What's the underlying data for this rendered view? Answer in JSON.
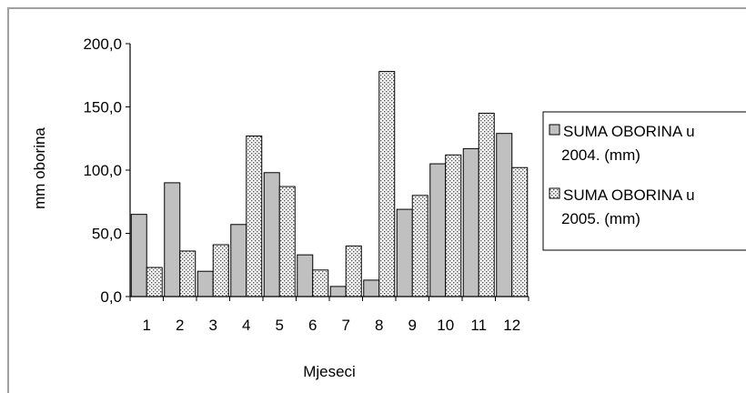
{
  "chart_data": {
    "type": "bar",
    "title": "",
    "xlabel": "Mjeseci",
    "ylabel": "mm oborina",
    "categories": [
      "1",
      "2",
      "3",
      "4",
      "5",
      "6",
      "7",
      "8",
      "9",
      "10",
      "11",
      "12"
    ],
    "ylim": [
      0,
      200
    ],
    "yticks": [
      "0,0",
      "50,0",
      "100,0",
      "150,0",
      "200,0"
    ],
    "ytick_values": [
      0,
      50,
      100,
      150,
      200
    ],
    "grid": false,
    "legend_position": "right",
    "series": [
      {
        "name": "SUMA OBORINA u 2004. (mm)",
        "legend_lines": [
          "SUMA OBORINA u",
          "2004. (mm)"
        ],
        "values": [
          65,
          90,
          20,
          57,
          98,
          33,
          8,
          13,
          69,
          105,
          117,
          129
        ],
        "fill": "#c0c0c0",
        "pattern": "solid"
      },
      {
        "name": "SUMA OBORINA u 2005. (mm)",
        "legend_lines": [
          "SUMA OBORINA u",
          "2005. (mm)"
        ],
        "values": [
          23,
          36,
          41,
          127,
          87,
          21,
          40,
          178,
          80,
          112,
          145,
          102
        ],
        "fill": "#ffffff",
        "pattern": "dotted"
      }
    ]
  }
}
